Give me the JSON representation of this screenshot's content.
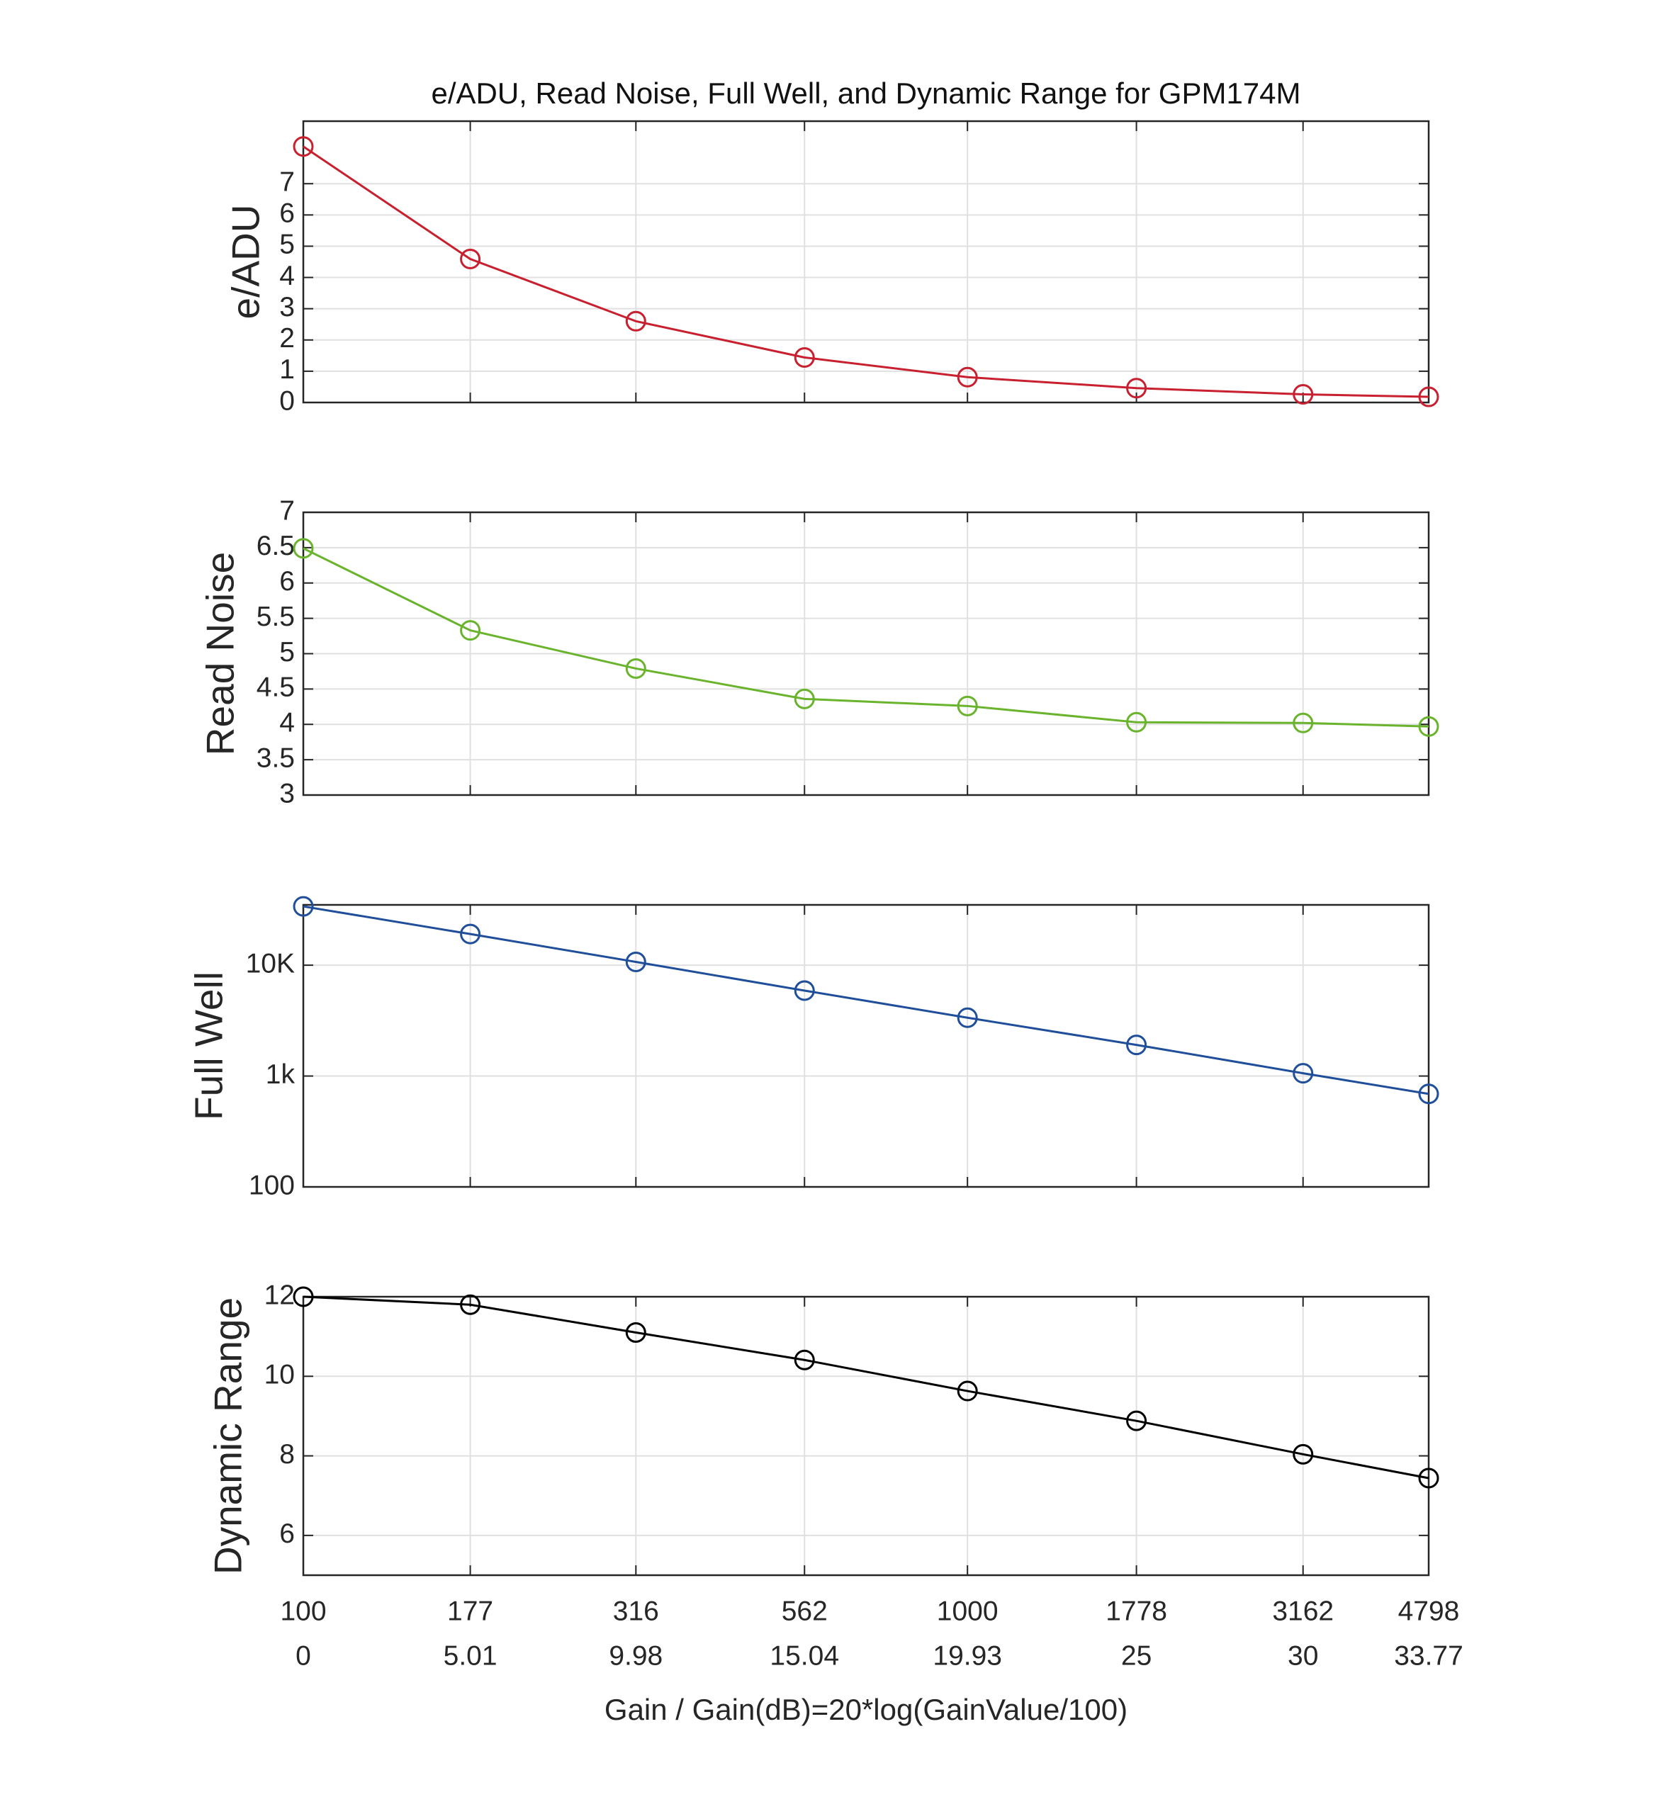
{
  "chart_data": [
    {
      "type": "line",
      "title": "e/ADU, Read Noise, Full Well, and Dynamic Range for GPM174M",
      "ylabel": "e/ADU",
      "color": "#c8202f",
      "grid": true,
      "x": [
        0,
        5.01,
        9.98,
        15.04,
        19.93,
        25,
        30,
        33.77
      ],
      "xlim": [
        0,
        33.77
      ],
      "values": [
        8.19,
        4.59,
        2.6,
        1.44,
        0.81,
        0.46,
        0.26,
        0.18
      ],
      "ylim": [
        0,
        9
      ],
      "yticks": [
        0,
        1,
        2,
        3,
        4,
        5,
        6,
        7
      ]
    },
    {
      "type": "line",
      "ylabel": "Read Noise",
      "color": "#6ab42d",
      "grid": true,
      "x": [
        0,
        5.01,
        9.98,
        15.04,
        19.93,
        25,
        30,
        33.77
      ],
      "xlim": [
        0,
        33.77
      ],
      "values": [
        6.49,
        5.33,
        4.79,
        4.36,
        4.26,
        4.03,
        4.02,
        3.97
      ],
      "ylim": [
        3,
        7
      ],
      "yticks": [
        3,
        3.5,
        4,
        4.5,
        5,
        5.5,
        6,
        6.5,
        7
      ]
    },
    {
      "type": "line",
      "ylabel": "Full Well",
      "color": "#1f4e9a",
      "grid": true,
      "log_scale": true,
      "x": [
        0,
        5.01,
        9.98,
        15.04,
        19.93,
        25,
        30,
        33.77
      ],
      "xlim": [
        0,
        33.77
      ],
      "values": [
        33900,
        19100,
        10700,
        5900,
        3360,
        1910,
        1060,
        690
      ],
      "ylim": [
        100,
        35000
      ],
      "yticks": [
        100,
        {
          "value": 1000,
          "label": "1k"
        },
        {
          "value": 10000,
          "label": "10K"
        }
      ]
    },
    {
      "type": "line",
      "ylabel": "Dynamic Range",
      "color": "#000000",
      "grid": true,
      "xlabel": "Gain / Gain(dB)=20*log(GainValue/100)",
      "x": [
        0,
        5.01,
        9.98,
        15.04,
        19.93,
        25,
        30,
        33.77
      ],
      "xlim": [
        0,
        33.77
      ],
      "xticks": [
        0,
        5.01,
        9.98,
        15.04,
        19.93,
        25,
        30,
        33.77
      ],
      "gain_ticks": [
        100,
        177,
        316,
        562,
        1000,
        1778,
        3162,
        4798
      ],
      "values": [
        12.0,
        11.8,
        11.1,
        10.41,
        9.63,
        8.88,
        8.04,
        7.44
      ],
      "ylim": [
        5,
        12
      ],
      "yticks": [
        6,
        8,
        10,
        12
      ]
    }
  ]
}
